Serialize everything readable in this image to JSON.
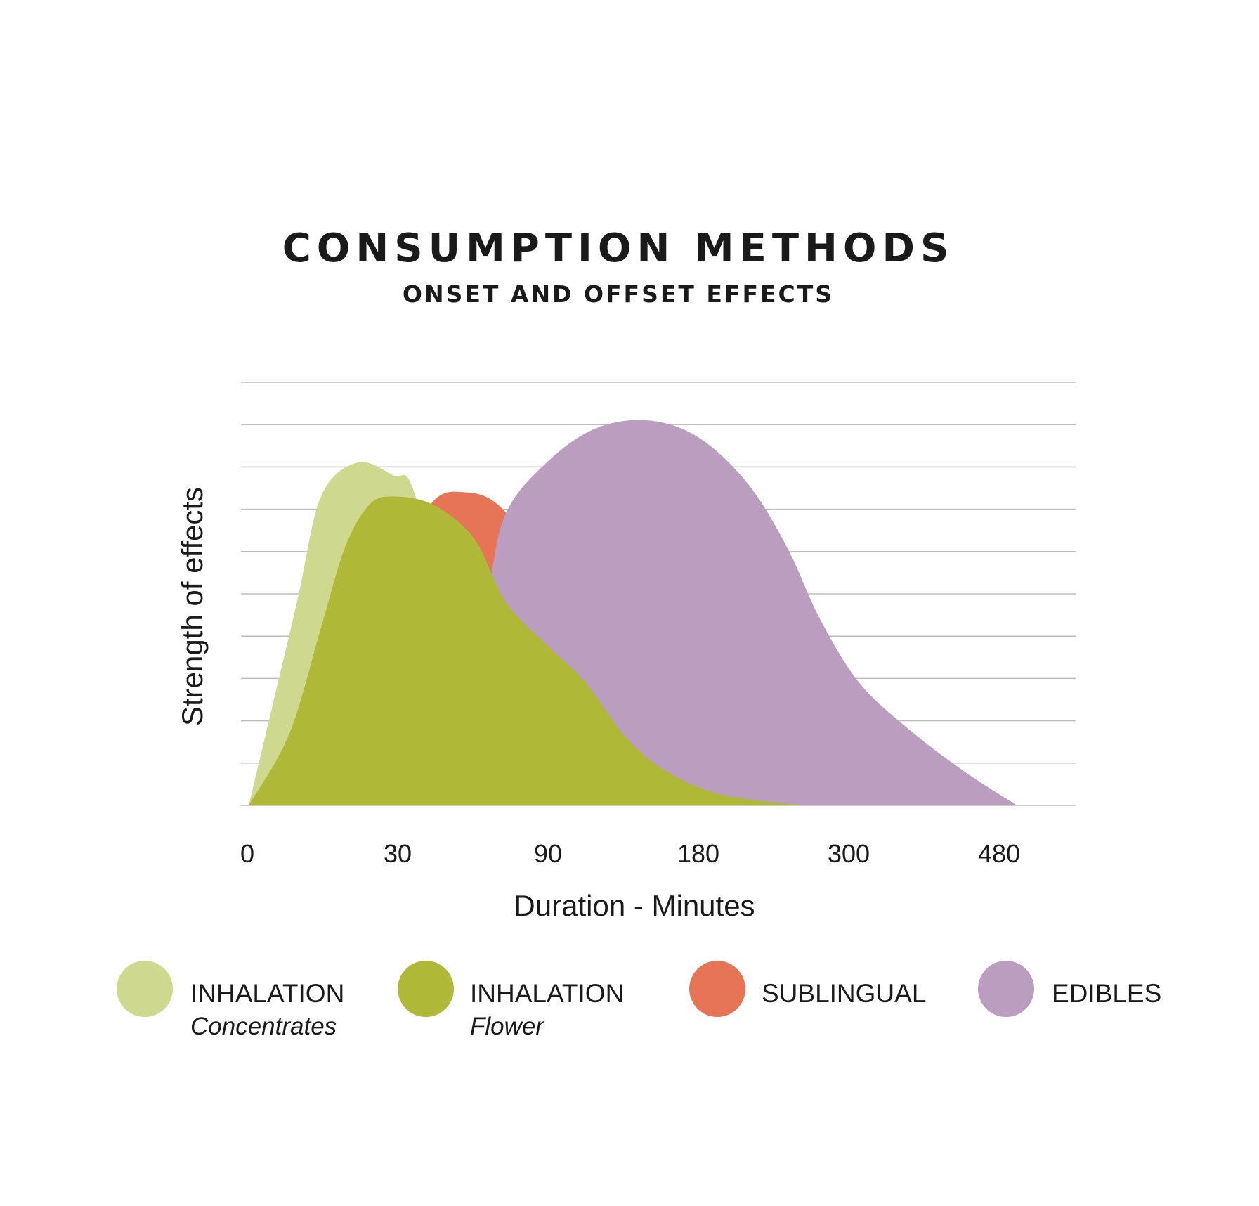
{
  "chart_data": {
    "type": "area",
    "title": "CONSUMPTION METHODS",
    "subtitle": "ONSET AND OFFSET EFFECTS",
    "xlabel": "Duration - Minutes",
    "ylabel": "Strength of effects",
    "x_ticks": [
      "0",
      "30",
      "90",
      "180",
      "300",
      "480"
    ],
    "x_scale_note": "x values are positions on the tick index scale (0 = '0' ... 5 = '480')",
    "ylim": [
      0,
      10
    ],
    "grid": true,
    "legend_position": "bottom",
    "series": [
      {
        "name": "INHALATION",
        "subname": "Concentrates",
        "color": "#cfd88f",
        "points": [
          [
            0.01,
            0
          ],
          [
            0.13,
            1.8
          ],
          [
            0.33,
            4.8
          ],
          [
            0.49,
            7.3
          ],
          [
            0.73,
            8.1
          ],
          [
            0.97,
            7.8
          ],
          [
            1.11,
            7.4
          ],
          [
            1.35,
            3.8
          ],
          [
            1.78,
            0
          ]
        ]
      },
      {
        "name": "SUBLINGUAL",
        "subname": "",
        "color": "#e57556",
        "points": [
          [
            0.01,
            0
          ],
          [
            0.6,
            2.5
          ],
          [
            1.03,
            5.8
          ],
          [
            1.24,
            7.2
          ],
          [
            1.45,
            7.4
          ],
          [
            1.67,
            7.1
          ],
          [
            1.94,
            5.9
          ],
          [
            2.2,
            4.6
          ],
          [
            2.63,
            2.9
          ],
          [
            3.06,
            1.6
          ],
          [
            3.49,
            0.8
          ],
          [
            4.13,
            0.25
          ],
          [
            4.88,
            0
          ]
        ]
      },
      {
        "name": "EDIBLES",
        "subname": "",
        "color": "#ba9dbf",
        "points": [
          [
            1.35,
            0
          ],
          [
            1.6,
            5.0
          ],
          [
            1.72,
            6.9
          ],
          [
            1.99,
            8.1
          ],
          [
            2.31,
            8.9
          ],
          [
            2.66,
            9.1
          ],
          [
            3.0,
            8.7
          ],
          [
            3.33,
            7.6
          ],
          [
            3.59,
            6.1
          ],
          [
            3.81,
            4.4
          ],
          [
            4.07,
            2.9
          ],
          [
            4.4,
            1.8
          ],
          [
            4.77,
            0.8
          ],
          [
            5.12,
            0
          ]
        ]
      },
      {
        "name": "INHALATION",
        "subname": "Flower",
        "color": "#afb937",
        "points": [
          [
            0.01,
            0
          ],
          [
            0.28,
            1.7
          ],
          [
            0.49,
            4.2
          ],
          [
            0.65,
            6.1
          ],
          [
            0.81,
            7.1
          ],
          [
            0.97,
            7.3
          ],
          [
            1.24,
            7.1
          ],
          [
            1.51,
            6.3
          ],
          [
            1.72,
            4.8
          ],
          [
            1.99,
            3.8
          ],
          [
            2.25,
            2.9
          ],
          [
            2.52,
            1.6
          ],
          [
            2.79,
            0.8
          ],
          [
            3.16,
            0.25
          ],
          [
            3.7,
            0
          ]
        ]
      }
    ]
  },
  "legend": [
    {
      "label": "INHALATION",
      "sub": "Concentrates",
      "color": "#cfd88f"
    },
    {
      "label": "INHALATION",
      "sub": "Flower",
      "color": "#afb937"
    },
    {
      "label": "SUBLINGUAL",
      "sub": "",
      "color": "#e57556"
    },
    {
      "label": "EDIBLES",
      "sub": "",
      "color": "#ba9dbf"
    }
  ]
}
